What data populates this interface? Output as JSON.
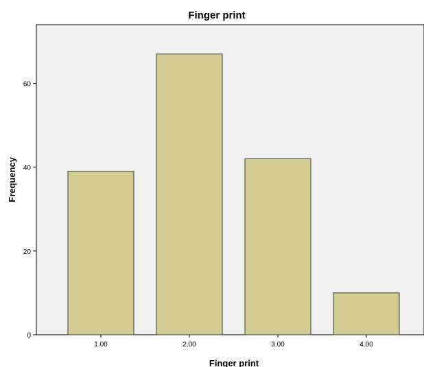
{
  "chart_data": {
    "type": "bar",
    "title": "Finger print",
    "xlabel": "Finger print",
    "ylabel": "Frequency",
    "categories": [
      "1.00",
      "2.00",
      "3.00",
      "4.00"
    ],
    "values": [
      39,
      67,
      42,
      10
    ],
    "ylim": [
      0,
      74
    ],
    "yticks": [
      0,
      20,
      40,
      60
    ],
    "grid": false,
    "colors": {
      "bar_fill": "#d3cc94",
      "bar_stroke": "#3a3a3a",
      "plot_bg": "#f0f0f0",
      "axis": "#000000"
    }
  }
}
